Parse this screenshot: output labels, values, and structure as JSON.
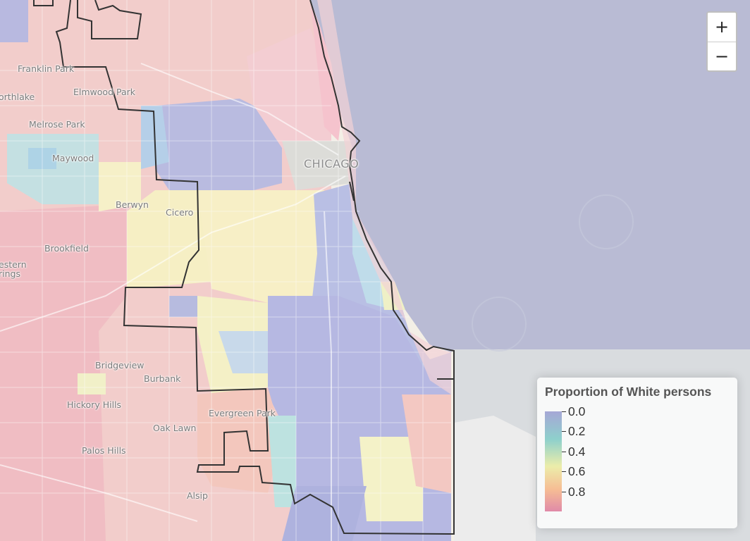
{
  "map": {
    "places": [
      {
        "label": "Franklin Park",
        "type": "town"
      },
      {
        "label": "orthlake",
        "type": "town"
      },
      {
        "label": "Elmwood Park",
        "type": "town"
      },
      {
        "label": "Melrose Park",
        "type": "town"
      },
      {
        "label": "Maywood",
        "type": "town"
      },
      {
        "label": "CHICAGO",
        "type": "city"
      },
      {
        "label": "Berwyn",
        "type": "town"
      },
      {
        "label": "Cicero",
        "type": "town"
      },
      {
        "label": "Brookfield",
        "type": "town"
      },
      {
        "label": "estern",
        "type": "town"
      },
      {
        "label": "rings",
        "type": "town"
      },
      {
        "label": "Bridgeview",
        "type": "town"
      },
      {
        "label": "Burbank",
        "type": "town"
      },
      {
        "label": "Hickory Hills",
        "type": "town"
      },
      {
        "label": "Evergreen Park",
        "type": "town"
      },
      {
        "label": "Oak Lawn",
        "type": "town"
      },
      {
        "label": "Palos Hills",
        "type": "town"
      },
      {
        "label": "Alsip",
        "type": "town"
      }
    ],
    "colors": {
      "water": "#b9bbd4",
      "land": "#f3efe6",
      "boundary": "#333333"
    }
  },
  "zoom": {
    "zoom_in_label": "+",
    "zoom_out_label": "−"
  },
  "legend": {
    "title": "Proportion of White persons",
    "ticks": [
      {
        "value": 0.0,
        "label": "0.0"
      },
      {
        "value": 0.2,
        "label": "0.2"
      },
      {
        "value": 0.4,
        "label": "0.4"
      },
      {
        "value": 0.6,
        "label": "0.6"
      },
      {
        "value": 0.8,
        "label": "0.8"
      }
    ],
    "domain": [
      0,
      1
    ],
    "colors": [
      "#a6a7d6",
      "#8ed0cc",
      "#ecedaa",
      "#f6bd94",
      "#e08aa8"
    ]
  }
}
